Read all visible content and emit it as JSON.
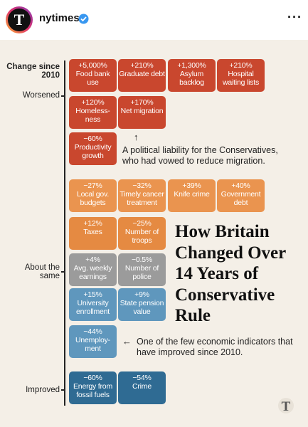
{
  "header": {
    "account": "nytimes"
  },
  "axis_labels": {
    "change": "Change since 2010",
    "worsened": "Worsened",
    "same": "About the same",
    "improved": "Improved"
  },
  "rows": [
    {
      "color": "#c9472e",
      "tiles": [
        {
          "change": "+5,000%",
          "label": "Food bank use"
        },
        {
          "change": "+210%",
          "label": "Graduate debt"
        },
        {
          "change": "+1,300%",
          "label": "Asylum backlog"
        },
        {
          "change": "+210%",
          "label": "Hospital waiting lists"
        }
      ]
    },
    {
      "color": "#c9472e",
      "tiles": [
        {
          "change": "+120%",
          "label": "Homeless-ness"
        },
        {
          "change": "+170%",
          "label": "Net migration"
        }
      ]
    },
    {
      "color": "#c9472e",
      "tiles": [
        {
          "change": "−60%",
          "label": "Productivity growth"
        }
      ]
    },
    {
      "color": "#ea944f",
      "tiles": [
        {
          "change": "−27%",
          "label": "Local gov. budgets"
        },
        {
          "change": "−32%",
          "label": "Timely cancer treatment"
        },
        {
          "change": "+39%",
          "label": "Knife crime"
        },
        {
          "change": "+40%",
          "label": "Government debt"
        }
      ]
    },
    {
      "color": "#e58a42",
      "tiles": [
        {
          "change": "+12%",
          "label": "Taxes"
        },
        {
          "change": "−25%",
          "label": "Number of troops"
        }
      ]
    },
    {
      "color": "#9b9b9b",
      "tiles": [
        {
          "change": "+4%",
          "label": "Avg. weekly earnings"
        },
        {
          "change": "−0.5%",
          "label": "Number of police"
        }
      ]
    },
    {
      "color": "#5f97bd",
      "tiles": [
        {
          "change": "+15%",
          "label": "University enrollment"
        },
        {
          "change": "+9%",
          "label": "State pension value"
        }
      ]
    },
    {
      "color": "#5f97bd",
      "tiles": [
        {
          "change": "−44%",
          "label": "Unemploy-ment"
        }
      ]
    },
    {
      "color": "#2f6b93",
      "tiles": [
        {
          "change": "−60%",
          "label": "Energy from fossil fuels"
        },
        {
          "change": "−54%",
          "label": "Crime"
        }
      ]
    }
  ],
  "annotations": [
    {
      "arrow": "↑",
      "text": "A political liability for the Conservatives, who had vowed to reduce migration."
    },
    {
      "arrow": "←",
      "text": "One of the few economic indicators that have improved since 2010."
    }
  ],
  "title": "How Britain Changed Over 14 Years of Conservative Rule"
}
